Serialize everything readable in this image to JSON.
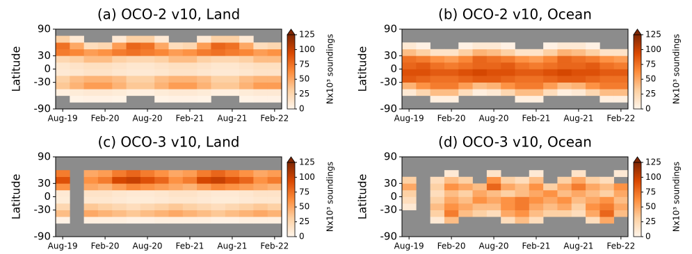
{
  "chart_data": [
    {
      "type": "heatmap",
      "title": "(a) OCO-2 v10, Land",
      "ylabel": "Latitude",
      "colorbar_label": "Nx10³ soundings",
      "categories": [
        "Aug-19",
        null,
        null,
        "Feb-20",
        null,
        null,
        "Aug-20",
        null,
        null,
        "Feb-21",
        null,
        null,
        "Aug-21",
        null,
        null,
        "Feb-22"
      ],
      "ybins": [
        -90,
        -75,
        -60,
        -45,
        -30,
        -15,
        0,
        15,
        30,
        45,
        60,
        75,
        90
      ],
      "ylim": [
        -90,
        90
      ],
      "yticks": [
        -90,
        -30,
        0,
        30,
        90
      ],
      "clim": [
        0,
        125
      ],
      "cticks": [
        0,
        25,
        50,
        75,
        100,
        125
      ],
      "colorbar_extend": "max",
      "colormap": [
        "#fff5eb",
        "#fdd0a2",
        "#fd8d3c",
        "#d94801",
        "#7f2704"
      ],
      "missing_color": "#8c8c8c",
      "values": [
        [
          null,
          null,
          null,
          null,
          null,
          null,
          null,
          null,
          null,
          null,
          null,
          null,
          null,
          null,
          null,
          null
        ],
        [
          null,
          2,
          3,
          3,
          2,
          null,
          null,
          2,
          3,
          3,
          2,
          null,
          null,
          2,
          3,
          3
        ],
        [
          5,
          8,
          10,
          10,
          8,
          5,
          5,
          8,
          10,
          10,
          8,
          5,
          5,
          8,
          10,
          10
        ],
        [
          35,
          45,
          55,
          55,
          45,
          35,
          35,
          45,
          55,
          55,
          45,
          35,
          35,
          45,
          55,
          55
        ],
        [
          30,
          40,
          45,
          45,
          40,
          30,
          30,
          40,
          45,
          45,
          40,
          30,
          30,
          40,
          45,
          45
        ],
        [
          10,
          12,
          15,
          15,
          12,
          10,
          10,
          12,
          15,
          15,
          12,
          10,
          10,
          12,
          15,
          15
        ],
        [
          12,
          15,
          18,
          18,
          15,
          12,
          12,
          15,
          18,
          18,
          15,
          12,
          12,
          15,
          18,
          18
        ],
        [
          25,
          30,
          40,
          40,
          30,
          25,
          25,
          30,
          40,
          40,
          30,
          25,
          25,
          30,
          40,
          40
        ],
        [
          70,
          65,
          55,
          60,
          70,
          75,
          70,
          65,
          55,
          60,
          70,
          75,
          70,
          65,
          55,
          60
        ],
        [
          75,
          50,
          20,
          25,
          55,
          80,
          75,
          50,
          20,
          25,
          55,
          80,
          75,
          50,
          20,
          25
        ],
        [
          30,
          10,
          null,
          null,
          10,
          30,
          30,
          10,
          null,
          null,
          10,
          30,
          30,
          10,
          null,
          null
        ],
        [
          null,
          null,
          null,
          null,
          null,
          null,
          null,
          null,
          null,
          null,
          null,
          null,
          null,
          null,
          null,
          null
        ]
      ]
    },
    {
      "type": "heatmap",
      "title": "(b) OCO-2 v10, Ocean",
      "ylabel": "Latitude",
      "colorbar_label": "Nx10³ soundings",
      "categories": [
        "Aug-19",
        null,
        null,
        "Feb-20",
        null,
        null,
        "Aug-20",
        null,
        null,
        "Feb-21",
        null,
        null,
        "Aug-21",
        null,
        null,
        "Feb-22"
      ],
      "ybins": [
        -90,
        -75,
        -60,
        -45,
        -30,
        -15,
        0,
        15,
        30,
        45,
        60,
        75,
        90
      ],
      "ylim": [
        -90,
        90
      ],
      "yticks": [
        -90,
        -30,
        0,
        30,
        90
      ],
      "clim": [
        0,
        125
      ],
      "cticks": [
        0,
        25,
        50,
        75,
        100,
        125
      ],
      "colorbar_extend": "max",
      "colormap": [
        "#fff5eb",
        "#fdd0a2",
        "#fd8d3c",
        "#d94801",
        "#7f2704"
      ],
      "missing_color": "#8c8c8c",
      "values": [
        [
          null,
          null,
          null,
          null,
          null,
          null,
          null,
          null,
          null,
          null,
          null,
          null,
          null,
          null,
          null,
          null
        ],
        [
          null,
          null,
          5,
          5,
          null,
          null,
          null,
          null,
          5,
          5,
          null,
          null,
          null,
          null,
          5,
          5
        ],
        [
          10,
          25,
          40,
          40,
          20,
          5,
          10,
          25,
          40,
          40,
          20,
          5,
          10,
          25,
          40,
          40
        ],
        [
          45,
          60,
          70,
          70,
          55,
          40,
          45,
          60,
          70,
          70,
          55,
          40,
          45,
          60,
          70,
          70
        ],
        [
          85,
          80,
          75,
          75,
          80,
          85,
          85,
          80,
          75,
          75,
          80,
          85,
          85,
          80,
          75,
          75
        ],
        [
          90,
          90,
          85,
          85,
          90,
          95,
          90,
          90,
          85,
          85,
          90,
          95,
          90,
          90,
          85,
          85
        ],
        [
          80,
          85,
          75,
          70,
          75,
          80,
          80,
          85,
          75,
          70,
          75,
          80,
          80,
          85,
          75,
          70
        ],
        [
          75,
          70,
          60,
          55,
          65,
          80,
          75,
          70,
          60,
          55,
          65,
          80,
          75,
          70,
          60,
          55
        ],
        [
          40,
          30,
          15,
          15,
          30,
          45,
          40,
          30,
          15,
          15,
          30,
          45,
          40,
          30,
          15,
          15
        ],
        [
          10,
          3,
          null,
          null,
          3,
          10,
          10,
          3,
          null,
          null,
          3,
          10,
          10,
          3,
          null,
          null
        ],
        [
          null,
          null,
          null,
          null,
          null,
          null,
          null,
          null,
          null,
          null,
          null,
          null,
          null,
          null,
          null,
          null
        ],
        [
          null,
          null,
          null,
          null,
          null,
          null,
          null,
          null,
          null,
          null,
          null,
          null,
          null,
          null,
          null,
          null
        ]
      ]
    },
    {
      "type": "heatmap",
      "title": "(c) OCO-3 v10, Land",
      "ylabel": "Latitude",
      "colorbar_label": "Nx10³ soundings",
      "categories": [
        "Aug-19",
        null,
        null,
        "Feb-20",
        null,
        null,
        "Aug-20",
        null,
        null,
        "Feb-21",
        null,
        null,
        "Aug-21",
        null,
        null,
        "Feb-22"
      ],
      "ybins": [
        -90,
        -75,
        -60,
        -45,
        -30,
        -15,
        0,
        15,
        30,
        45,
        60,
        75,
        90
      ],
      "ylim": [
        -90,
        90
      ],
      "yticks": [
        -90,
        -30,
        0,
        30,
        90
      ],
      "clim": [
        0,
        125
      ],
      "cticks": [
        0,
        25,
        50,
        75,
        100,
        125
      ],
      "colorbar_extend": "max",
      "colormap": [
        "#fff5eb",
        "#fdd0a2",
        "#fd8d3c",
        "#d94801",
        "#7f2704"
      ],
      "missing_color": "#8c8c8c",
      "values": [
        [
          null,
          null,
          null,
          null,
          null,
          null,
          null,
          null,
          null,
          null,
          null,
          null,
          null,
          null,
          null,
          null
        ],
        [
          null,
          null,
          null,
          null,
          null,
          null,
          null,
          null,
          null,
          null,
          null,
          null,
          null,
          null,
          null,
          null
        ],
        [
          3,
          null,
          5,
          5,
          5,
          3,
          3,
          5,
          5,
          5,
          5,
          3,
          3,
          5,
          5,
          5
        ],
        [
          40,
          null,
          50,
          45,
          40,
          35,
          40,
          45,
          50,
          45,
          40,
          35,
          40,
          45,
          50,
          45
        ],
        [
          25,
          null,
          35,
          30,
          25,
          20,
          25,
          30,
          35,
          30,
          25,
          20,
          25,
          30,
          35,
          30
        ],
        [
          8,
          null,
          12,
          12,
          10,
          8,
          8,
          10,
          12,
          12,
          10,
          8,
          8,
          10,
          12,
          12
        ],
        [
          10,
          null,
          15,
          15,
          12,
          10,
          10,
          12,
          15,
          15,
          12,
          10,
          10,
          12,
          15,
          15
        ],
        [
          60,
          null,
          50,
          45,
          55,
          65,
          60,
          55,
          50,
          45,
          55,
          65,
          60,
          55,
          50,
          45
        ],
        [
          90,
          null,
          60,
          70,
          95,
          100,
          90,
          80,
          60,
          70,
          95,
          100,
          90,
          80,
          60,
          70
        ],
        [
          70,
          null,
          50,
          55,
          70,
          80,
          70,
          60,
          50,
          55,
          70,
          80,
          70,
          60,
          50,
          55
        ],
        [
          null,
          null,
          null,
          null,
          null,
          null,
          null,
          null,
          null,
          null,
          null,
          null,
          null,
          null,
          null,
          null
        ],
        [
          null,
          null,
          null,
          null,
          null,
          null,
          null,
          null,
          null,
          null,
          null,
          null,
          null,
          null,
          null,
          null
        ]
      ]
    },
    {
      "type": "heatmap",
      "title": "(d) OCO-3 v10, Ocean",
      "ylabel": "Latitude",
      "colorbar_label": "Nx10³ soundings",
      "categories": [
        "Aug-19",
        null,
        null,
        "Feb-20",
        null,
        null,
        "Aug-20",
        null,
        null,
        "Feb-21",
        null,
        null,
        "Aug-21",
        null,
        null,
        "Feb-22"
      ],
      "ybins": [
        -90,
        -75,
        -60,
        -45,
        -30,
        -15,
        0,
        15,
        30,
        45,
        60,
        75,
        90
      ],
      "ylim": [
        -90,
        90
      ],
      "yticks": [
        -90,
        -30,
        0,
        30,
        90
      ],
      "clim": [
        0,
        125
      ],
      "cticks": [
        0,
        25,
        50,
        75,
        100,
        125
      ],
      "colorbar_extend": "max",
      "colormap": [
        "#fff5eb",
        "#fdd0a2",
        "#fd8d3c",
        "#d94801",
        "#7f2704"
      ],
      "missing_color": "#8c8c8c",
      "values": [
        [
          null,
          null,
          null,
          null,
          null,
          null,
          null,
          null,
          null,
          null,
          null,
          null,
          null,
          null,
          null,
          null
        ],
        [
          null,
          null,
          null,
          null,
          null,
          null,
          null,
          null,
          null,
          null,
          null,
          null,
          null,
          null,
          null,
          null
        ],
        [
          null,
          null,
          10,
          40,
          null,
          null,
          null,
          20,
          40,
          20,
          null,
          null,
          null,
          20,
          50,
          null
        ],
        [
          null,
          null,
          30,
          70,
          40,
          30,
          20,
          50,
          60,
          40,
          30,
          30,
          20,
          50,
          80,
          40
        ],
        [
          10,
          null,
          40,
          60,
          50,
          40,
          40,
          60,
          70,
          50,
          40,
          50,
          30,
          60,
          70,
          50
        ],
        [
          20,
          null,
          30,
          50,
          40,
          60,
          50,
          60,
          70,
          60,
          50,
          60,
          40,
          50,
          60,
          40
        ],
        [
          30,
          null,
          20,
          40,
          30,
          50,
          40,
          30,
          40,
          50,
          60,
          40,
          50,
          40,
          30,
          50
        ],
        [
          50,
          null,
          30,
          60,
          50,
          40,
          80,
          50,
          40,
          60,
          30,
          50,
          70,
          50,
          40,
          60
        ],
        [
          30,
          null,
          20,
          40,
          30,
          null,
          60,
          30,
          20,
          40,
          null,
          30,
          50,
          30,
          20,
          null
        ],
        [
          null,
          null,
          null,
          10,
          null,
          null,
          15,
          null,
          null,
          10,
          null,
          null,
          15,
          null,
          null,
          10
        ],
        [
          null,
          null,
          null,
          null,
          null,
          null,
          null,
          null,
          null,
          null,
          null,
          null,
          null,
          null,
          null,
          null
        ],
        [
          null,
          null,
          null,
          null,
          null,
          null,
          null,
          null,
          null,
          null,
          null,
          null,
          null,
          null,
          null,
          null
        ]
      ]
    }
  ]
}
